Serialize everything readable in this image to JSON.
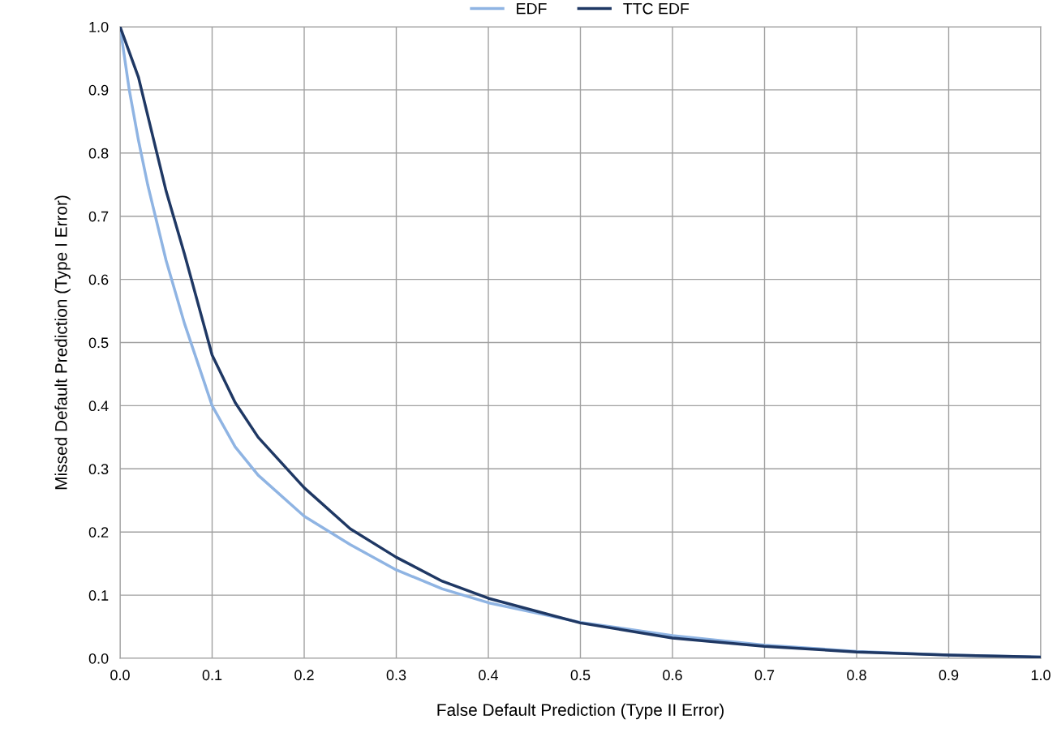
{
  "chart_data": {
    "type": "line",
    "xlabel": "False Default Prediction (Type II Error)",
    "ylabel": "Missed Default Prediction (Type I Error)",
    "x": [
      0,
      0.01,
      0.02,
      0.03,
      0.05,
      0.07,
      0.1,
      0.125,
      0.15,
      0.2,
      0.25,
      0.3,
      0.35,
      0.4,
      0.5,
      0.6,
      0.7,
      0.8,
      0.9,
      1.0
    ],
    "series": [
      {
        "name": "EDF",
        "color": "#8fb4e3",
        "values": [
          1.0,
          0.9,
          0.82,
          0.75,
          0.63,
          0.53,
          0.4,
          0.335,
          0.29,
          0.225,
          0.18,
          0.14,
          0.11,
          0.088,
          0.057,
          0.036,
          0.021,
          0.011,
          0.005,
          0.002
        ]
      },
      {
        "name": "TTC EDF",
        "color": "#1f3864",
        "values": [
          1.0,
          0.96,
          0.92,
          0.86,
          0.74,
          0.64,
          0.48,
          0.405,
          0.35,
          0.27,
          0.205,
          0.16,
          0.122,
          0.095,
          0.056,
          0.032,
          0.019,
          0.01,
          0.005,
          0.002
        ]
      }
    ],
    "xlim": [
      0,
      1.0
    ],
    "xticks": [
      {
        "value": 0,
        "label": "0.0"
      },
      0.1,
      0.2,
      0.3,
      0.4,
      0.5,
      0.6,
      0.7,
      0.8,
      0.9,
      {
        "value": 1.0,
        "label": "1.0"
      }
    ],
    "ylim": [
      0,
      1.0
    ],
    "yticks": [
      {
        "value": 0,
        "label": "0.0"
      },
      0.1,
      0.2,
      0.3,
      0.4,
      0.5,
      0.6,
      0.7,
      0.8,
      0.9,
      {
        "value": 1.0,
        "label": "1.0"
      }
    ],
    "grid": true,
    "legend": "top",
    "marker": "none",
    "line_style": "solid"
  }
}
